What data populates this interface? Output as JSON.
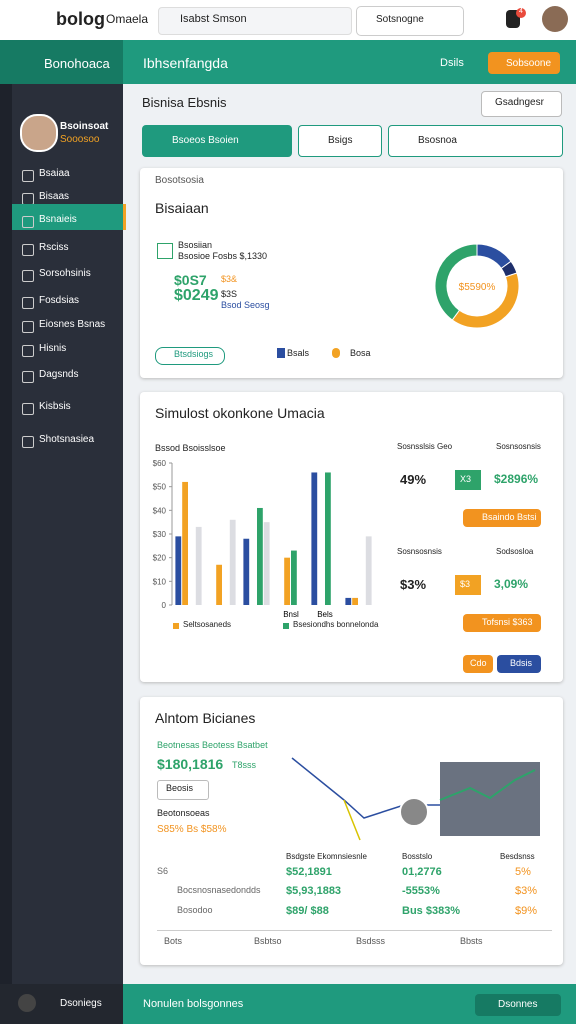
{
  "topbar": {
    "logo": "bolog",
    "brand": "Omaela",
    "search": "Isabst Smson",
    "button": "Sotsnogne",
    "badge": "4"
  },
  "header": {
    "app": "Bonohoaca",
    "title": "Ibhsenfangda",
    "link": "Dsils",
    "button": "Sobsoone"
  },
  "sidebar": {
    "name": "Bsoinsoat",
    "role": "Sooosoo",
    "menu": [
      "Bsaiaa",
      "Bisaas",
      "Bsnaieis",
      "Rsciss",
      "Sorsohsinis",
      "Fosdsias",
      "Eiosnes Bsnas",
      "Hisnis",
      "Dagsnds",
      "Kisbsis",
      "Shotsnasiea"
    ],
    "footer": "Dsoniegs"
  },
  "page": {
    "title": "Bisnisa Ebsnis",
    "button": "Gsadngesr",
    "filters": [
      "Bsoeos Bsoien",
      "Bsigs",
      "Bsosnoa"
    ]
  },
  "card1": {
    "label": "Bosotsosia",
    "title": "Bisaiaan",
    "line1": "Bsosiian",
    "line2": "Bsosioe Fosbs $,1330",
    "big1": "$0S7",
    "small1": "$3&",
    "big2": "$0249",
    "small2": "$3S",
    "small3": "Bsod Seosg",
    "button": "Btsdsiogs",
    "donut": {
      "values": [
        15,
        5,
        40,
        40
      ],
      "colors": [
        "#2b4ea0",
        "#1e2f6b",
        "#f2a223",
        "#2ea36a"
      ],
      "center_label": "$5590%",
      "legend": [
        {
          "name": "Bsals",
          "color": "#2b4ea0"
        },
        {
          "name": "Bosa",
          "color": "#f2a223"
        }
      ]
    }
  },
  "card2": {
    "title": "Simulost okonkone Umacia",
    "chart_title": "Bssod Bsoisslsoe",
    "chart": {
      "type": "bar",
      "categories": [
        null,
        null,
        null,
        "Bnsl",
        "Bels",
        null
      ],
      "ylim": [
        0,
        60
      ],
      "yticks": [
        0,
        {
          "value": 10,
          "label": "$10"
        },
        {
          "value": 20,
          "label": "$20"
        },
        {
          "value": 30,
          "label": "$30"
        },
        {
          "value": 40,
          "label": "$40"
        },
        {
          "value": 50,
          "label": "$50"
        },
        {
          "value": 60,
          "label": "$60"
        }
      ],
      "series": [
        {
          "color": "#2b4ea0",
          "values": [
            29,
            null,
            28,
            null,
            56,
            3
          ]
        },
        {
          "name": "Seltsosaneds",
          "color": "#f2a223",
          "values": [
            52,
            17,
            null,
            20,
            null,
            3
          ]
        },
        {
          "name": "Bsesiondhs bonnelonda",
          "color": "#2ea36a",
          "values": [
            null,
            null,
            41,
            23,
            56,
            null
          ]
        },
        {
          "color": "#dcdde2",
          "values": [
            33,
            36,
            35,
            null,
            null,
            29
          ]
        }
      ]
    },
    "stats": [
      {
        "label": "Sosnsslsis Geo",
        "value": "49%",
        "badge": "X3",
        "delta": "$2896%",
        "label2": "Sosnsosnsis",
        "button": "Bsaindo Bstsi"
      },
      {
        "label": "Sosnsosnsis",
        "value": "$3%",
        "badge": "$3",
        "delta": "3,09%",
        "label2": "Sodsosloa",
        "button": "Tofsnsi $363"
      }
    ],
    "buttons": [
      "Cdo",
      "Bdsis"
    ]
  },
  "card3": {
    "title": "Alntom Bicianes",
    "sub": "Beotnesas Beotess Bsatbet",
    "big": "$180,1816",
    "tag": "T8sss",
    "button": "Beosis",
    "label": "Beotonsoeas",
    "stat": "S85% Bs $58%",
    "table": {
      "header": [
        "Bsdgste Ekomnsiesnle",
        "Bosstslo",
        "Besdsnss"
      ],
      "rows": [
        [
          "S6",
          "$52,1891",
          "01,2776",
          "5%"
        ],
        [
          "Bocsnosnasedondds",
          "$5,93,1883",
          "-5553%",
          "$3%"
        ],
        [
          "Bosodoo",
          "$89/ $88",
          "Bus $383%",
          "$9%"
        ]
      ],
      "footer": [
        "Bots",
        "Bsbtso",
        "Bsdsss",
        "Bbsts"
      ]
    }
  },
  "bottombar": {
    "text": "Nonulen bolsgonnes",
    "button": "Dsonnes"
  }
}
